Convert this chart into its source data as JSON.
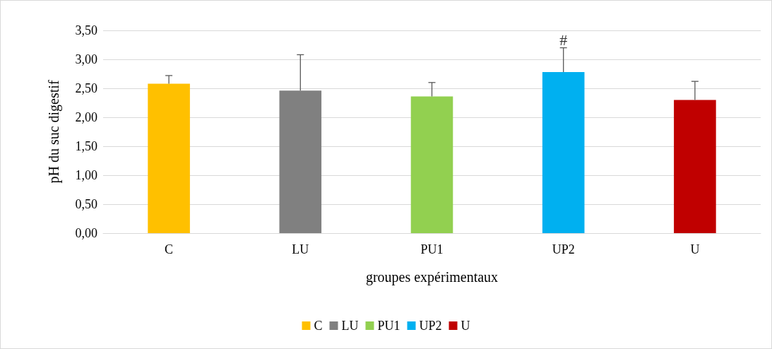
{
  "chart_data": {
    "type": "bar",
    "xlabel": "groupes expérimentaux",
    "ylabel": "pH du suc digestif",
    "categories": [
      "C",
      "LU",
      "PU1",
      "UP2",
      "U"
    ],
    "stacked": true,
    "series": [
      {
        "name": "C",
        "color": "#ffc000",
        "values": [
          2.58,
          null,
          null,
          null,
          null
        ],
        "errors": [
          [
            2.58,
            2.72
          ],
          null,
          null,
          null,
          null
        ]
      },
      {
        "name": "LU",
        "color": "#808080",
        "values": [
          null,
          2.46,
          null,
          null,
          null
        ],
        "errors": [
          null,
          [
            2.46,
            3.08
          ],
          null,
          null,
          null
        ]
      },
      {
        "name": "PU1",
        "color": "#92d050",
        "values": [
          null,
          null,
          2.36,
          null,
          null
        ],
        "errors": [
          null,
          null,
          [
            2.36,
            2.6
          ],
          null,
          null
        ]
      },
      {
        "name": "UP2",
        "color": "#00b0f0",
        "values": [
          null,
          null,
          null,
          2.78,
          null
        ],
        "errors": [
          null,
          null,
          null,
          [
            2.78,
            3.2
          ],
          null
        ]
      },
      {
        "name": "U",
        "color": "#c00000",
        "values": [
          null,
          null,
          null,
          null,
          2.3
        ],
        "errors": [
          null,
          null,
          null,
          null,
          [
            2.3,
            2.62
          ]
        ]
      }
    ],
    "ylim": [
      0,
      3.5
    ],
    "yticks": [
      {
        "value": 0,
        "label": "0,00"
      },
      {
        "value": 0.5,
        "label": "0,50"
      },
      {
        "value": 1,
        "label": "1,00"
      },
      {
        "value": 1.5,
        "label": "1,50"
      },
      {
        "value": 2,
        "label": "2,00"
      },
      {
        "value": 2.5,
        "label": "2,50"
      },
      {
        "value": 3,
        "label": "3,00"
      },
      {
        "value": 3.5,
        "label": "3,50"
      }
    ],
    "grid": "y",
    "legend": "bottom",
    "annotations": [
      {
        "text": "#",
        "x": "UP2",
        "y": 3.2
      }
    ]
  }
}
